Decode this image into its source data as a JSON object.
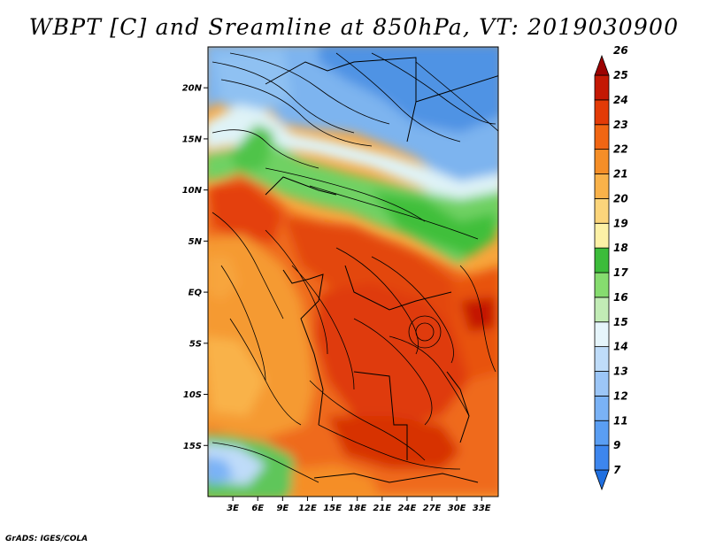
{
  "title": "WBPT [C] and Sreamline at 850hPa, VT: 2019030900",
  "footer": "GrADS: IGES/COLA",
  "map": {
    "lat_labels": [
      "20N",
      "15N",
      "10N",
      "5N",
      "EQ",
      "5S",
      "10S",
      "15S"
    ],
    "lat_values": [
      20,
      15,
      10,
      5,
      0,
      -5,
      -10,
      -15
    ],
    "lon_labels": [
      "3E",
      "6E",
      "9E",
      "12E",
      "15E",
      "18E",
      "21E",
      "24E",
      "27E",
      "30E",
      "33E"
    ],
    "lon_values": [
      3,
      6,
      9,
      12,
      15,
      18,
      21,
      24,
      27,
      30,
      33
    ],
    "lon_range": [
      0,
      35
    ],
    "lat_range": [
      -20,
      24
    ]
  },
  "colorbar": {
    "labels": [
      "7",
      "9",
      "11",
      "12",
      "13",
      "14",
      "15",
      "16",
      "17",
      "18",
      "19",
      "20",
      "21",
      "22",
      "23",
      "24",
      "25",
      "26"
    ],
    "colors": [
      "#1f6fe0",
      "#3d86ee",
      "#5a9ef3",
      "#7ab2f6",
      "#9cc6f7",
      "#bfdcf9",
      "#e6f5fb",
      "#c2ecb6",
      "#86dc6f",
      "#3cbc3a",
      "#fdf1a6",
      "#fcd57b",
      "#f9b24a",
      "#f58e27",
      "#f16613",
      "#e33b07",
      "#c41804",
      "#9c0201"
    ]
  }
}
